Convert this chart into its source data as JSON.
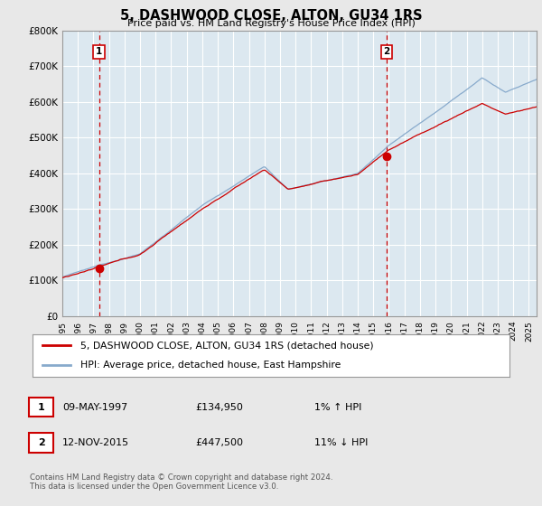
{
  "title": "5, DASHWOOD CLOSE, ALTON, GU34 1RS",
  "subtitle": "Price paid vs. HM Land Registry's House Price Index (HPI)",
  "ylabel_ticks": [
    "£0",
    "£100K",
    "£200K",
    "£300K",
    "£400K",
    "£500K",
    "£600K",
    "£700K",
    "£800K"
  ],
  "ylim": [
    0,
    800000
  ],
  "xlim_start": 1995.0,
  "xlim_end": 2025.5,
  "sale1_x": 1997.36,
  "sale1_y": 134950,
  "sale2_x": 2015.87,
  "sale2_y": 447500,
  "legend_line1": "5, DASHWOOD CLOSE, ALTON, GU34 1RS (detached house)",
  "legend_line2": "HPI: Average price, detached house, East Hampshire",
  "table_row1_date": "09-MAY-1997",
  "table_row1_price": "£134,950",
  "table_row1_hpi": "1% ↑ HPI",
  "table_row2_date": "12-NOV-2015",
  "table_row2_price": "£447,500",
  "table_row2_hpi": "11% ↓ HPI",
  "footer": "Contains HM Land Registry data © Crown copyright and database right 2024.\nThis data is licensed under the Open Government Licence v3.0.",
  "sale_color": "#cc0000",
  "hpi_color": "#88aacc",
  "vline_color": "#cc0000",
  "bg_color": "#e8e8e8",
  "plot_bg": "#dce8f0",
  "grid_color": "#ffffff"
}
